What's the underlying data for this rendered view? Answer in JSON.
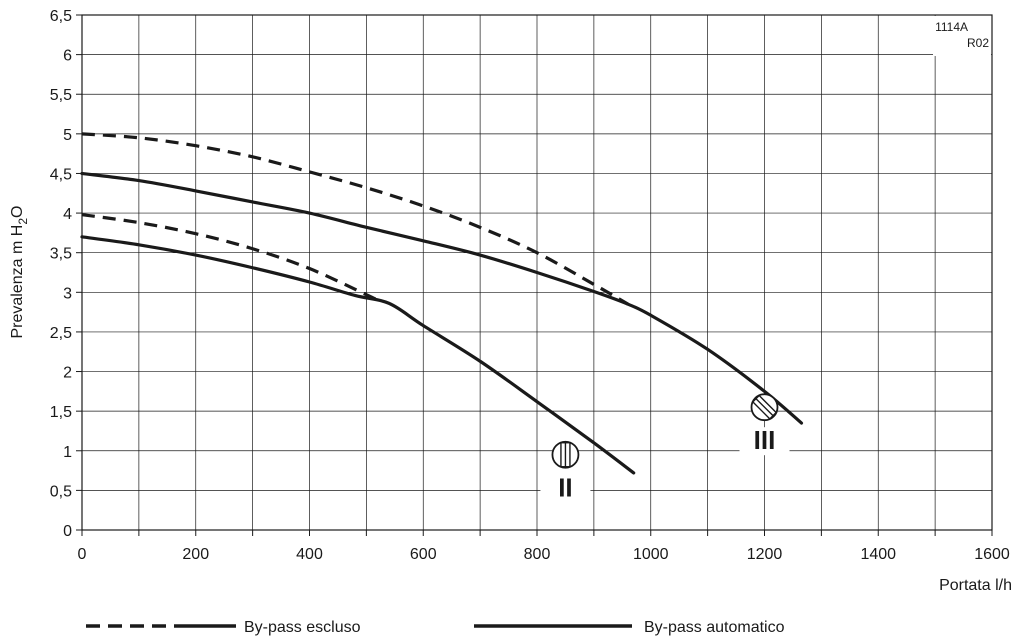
{
  "chart_data": {
    "type": "line",
    "xlabel": "Portata l/h",
    "ylabel_prefix": "Prevalenza m H",
    "ylabel_sub": "2",
    "ylabel_suffix": "O",
    "code_line1": "1114A",
    "code_line2": "R02",
    "xlim": [
      0,
      1600
    ],
    "ylim": [
      0,
      6.5
    ],
    "x_ticks": [
      0,
      200,
      400,
      600,
      800,
      1000,
      1200,
      1400,
      1600
    ],
    "x_tick_labels": [
      "0",
      "200",
      "400",
      "600",
      "800",
      "1000",
      "1200",
      "1400",
      "1600"
    ],
    "y_ticks": [
      0,
      0.5,
      1,
      1.5,
      2,
      2.5,
      3,
      3.5,
      4,
      4.5,
      5,
      5.5,
      6,
      6.5
    ],
    "y_tick_labels": [
      "0",
      "0,5",
      "1",
      "1,5",
      "2",
      "2,5",
      "3",
      "3,5",
      "4",
      "4,5",
      "5",
      "5,5",
      "6",
      "6,5"
    ],
    "grid": true,
    "legend": [
      {
        "label": "By-pass escluso",
        "style": "dashed-solid"
      },
      {
        "label": "By-pass automatico",
        "style": "solid"
      }
    ],
    "series": [
      {
        "style": "dashed",
        "speed": "II",
        "x": [
          0,
          100,
          200,
          300,
          400,
          500,
          520
        ],
        "y": [
          3.98,
          3.88,
          3.74,
          3.55,
          3.3,
          2.97,
          2.9
        ]
      },
      {
        "style": "solid",
        "speed": "II",
        "x": [
          0,
          100,
          200,
          300,
          400,
          480,
          540,
          600,
          700,
          800,
          900,
          970
        ],
        "y": [
          3.7,
          3.6,
          3.47,
          3.31,
          3.13,
          2.96,
          2.86,
          2.58,
          2.13,
          1.62,
          1.1,
          0.72
        ]
      },
      {
        "style": "dashed",
        "speed": "III",
        "x": [
          0,
          100,
          200,
          300,
          400,
          500,
          600,
          700,
          800,
          900,
          960
        ],
        "y": [
          5.0,
          4.95,
          4.85,
          4.71,
          4.52,
          4.32,
          4.09,
          3.82,
          3.5,
          3.1,
          2.85
        ]
      },
      {
        "style": "solid",
        "speed": "III",
        "x": [
          0,
          100,
          200,
          300,
          400,
          500,
          600,
          700,
          800,
          900,
          960,
          1000,
          1100,
          1200,
          1265
        ],
        "y": [
          4.5,
          4.41,
          4.28,
          4.14,
          4.0,
          3.82,
          3.65,
          3.47,
          3.25,
          3.01,
          2.85,
          2.71,
          2.28,
          1.75,
          1.35
        ]
      }
    ],
    "annotations": [
      {
        "label": "II",
        "x": 850,
        "y": 0.95,
        "icon": "vertical-knob-icon"
      },
      {
        "label": "III",
        "x": 1200,
        "y": 1.55,
        "icon": "diagonal-knob-icon"
      }
    ]
  }
}
